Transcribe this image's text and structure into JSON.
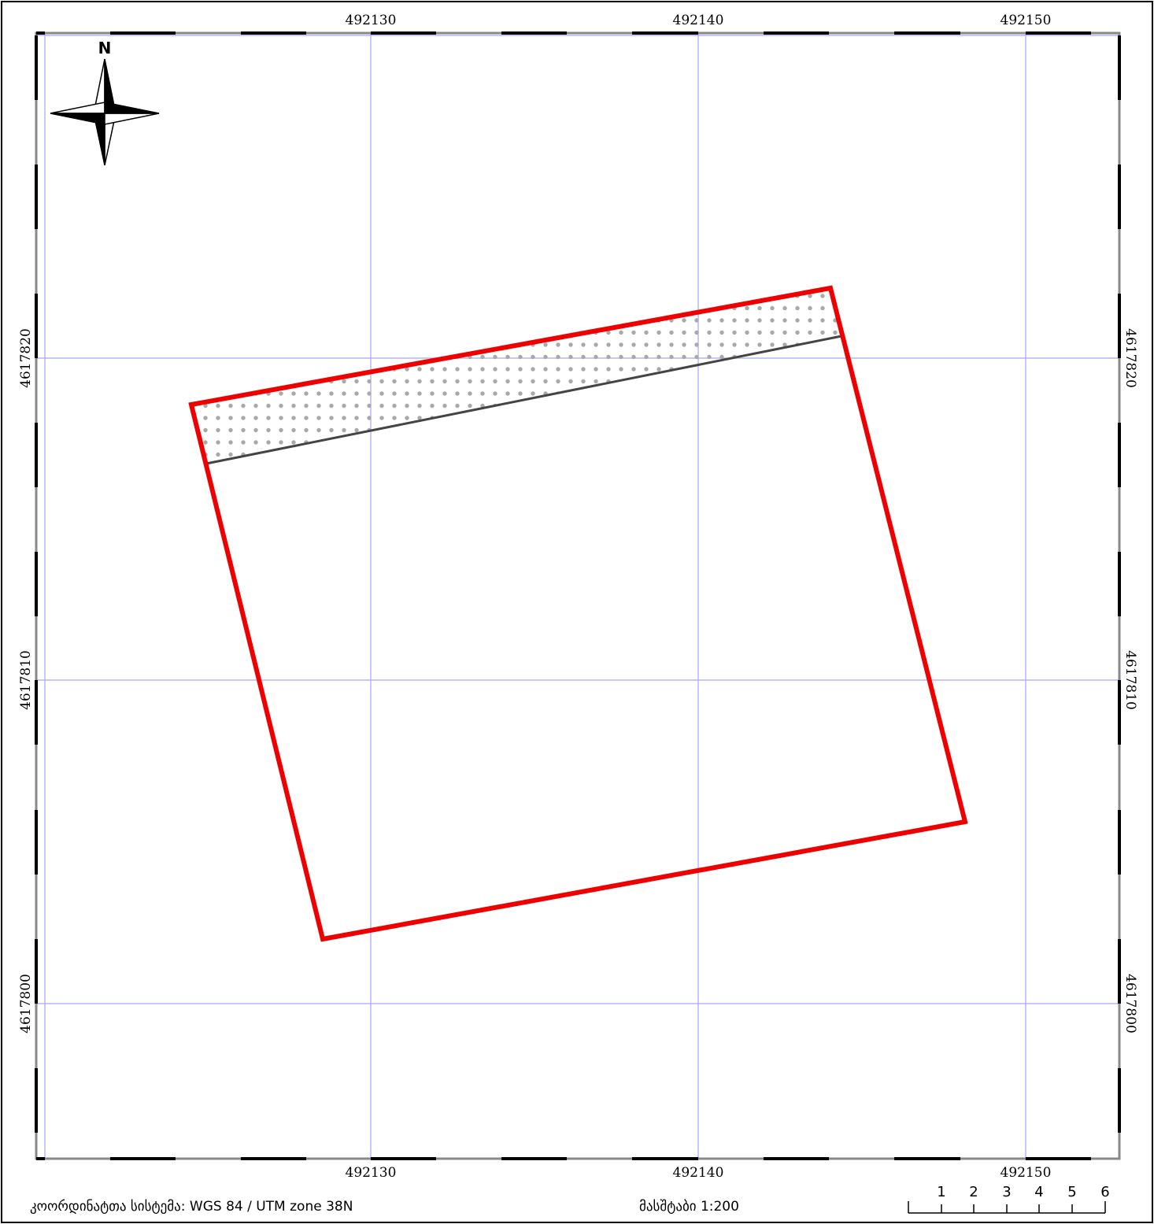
{
  "grid": {
    "x_labels": [
      "492130",
      "492140",
      "492150"
    ],
    "y_labels": [
      "4617820",
      "4617810",
      "4617800"
    ],
    "line_color": "#a7a7f0"
  },
  "north_arrow": {
    "letter": "N",
    "icon": "compass-rose-icon"
  },
  "parcel": {
    "outline_color": "#ee0000",
    "hatch_color": "#a9a9a9"
  },
  "footer": {
    "crs_text": "კოორდინატთა სისტემა: WGS 84 / UTM zone 38N",
    "scale_text": "მასშტაბი 1:200"
  },
  "scale_bar": {
    "ticks": [
      "1",
      "2",
      "3",
      "4",
      "5",
      "6"
    ]
  }
}
